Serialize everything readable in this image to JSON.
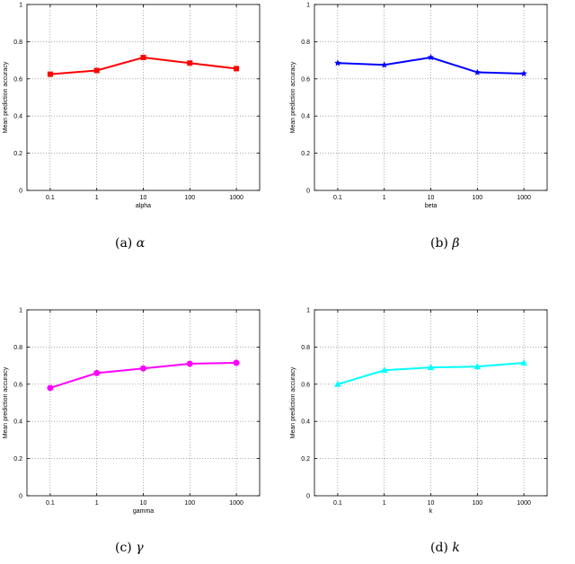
{
  "chart_data": [
    {
      "type": "line",
      "categories": [
        "0.1",
        "1",
        "10",
        "100",
        "1000"
      ],
      "series": [
        {
          "values": [
            0.625,
            0.645,
            0.715,
            0.685,
            0.655
          ],
          "color": "#ff0000",
          "marker": "square"
        }
      ],
      "xlabel": "alpha",
      "ylabel": "Mean prediction accuracy",
      "ylim": [
        0,
        1
      ],
      "yticks": [
        "0",
        "0.2",
        "0.4",
        "0.6",
        "0.8",
        "1"
      ],
      "grid": true,
      "caption": {
        "label": "(a)",
        "symbol": "α"
      }
    },
    {
      "type": "line",
      "categories": [
        "0.1",
        "1",
        "10",
        "100",
        "1000"
      ],
      "series": [
        {
          "values": [
            0.685,
            0.675,
            0.715,
            0.635,
            0.628
          ],
          "color": "#0000ff",
          "marker": "star"
        }
      ],
      "xlabel": "beta",
      "ylabel": "Mean prediction accuracy",
      "ylim": [
        0,
        1
      ],
      "yticks": [
        "0",
        "0.2",
        "0.4",
        "0.6",
        "0.8",
        "1"
      ],
      "grid": true,
      "caption": {
        "label": "(b)",
        "symbol": "β"
      }
    },
    {
      "type": "line",
      "categories": [
        "0.1",
        "1",
        "10",
        "100",
        "1000"
      ],
      "series": [
        {
          "values": [
            0.58,
            0.66,
            0.685,
            0.71,
            0.715
          ],
          "color": "#ff00ff",
          "marker": "circle"
        }
      ],
      "xlabel": "gamma",
      "ylabel": "Mean prediction accuracy",
      "ylim": [
        0,
        1
      ],
      "yticks": [
        "0",
        "0.2",
        "0.4",
        "0.6",
        "0.8",
        "1"
      ],
      "grid": true,
      "caption": {
        "label": "(c)",
        "symbol": "γ"
      }
    },
    {
      "type": "line",
      "categories": [
        "0.1",
        "1",
        "10",
        "100",
        "1000"
      ],
      "series": [
        {
          "values": [
            0.6,
            0.675,
            0.69,
            0.695,
            0.715
          ],
          "color": "#00ffff",
          "marker": "triangle"
        }
      ],
      "xlabel": "k",
      "ylabel": "Mean prediction accuracy",
      "ylim": [
        0,
        1
      ],
      "yticks": [
        "0",
        "0.2",
        "0.4",
        "0.6",
        "0.8",
        "1"
      ],
      "grid": true,
      "caption": {
        "label": "(d)",
        "symbol": "k"
      }
    }
  ]
}
